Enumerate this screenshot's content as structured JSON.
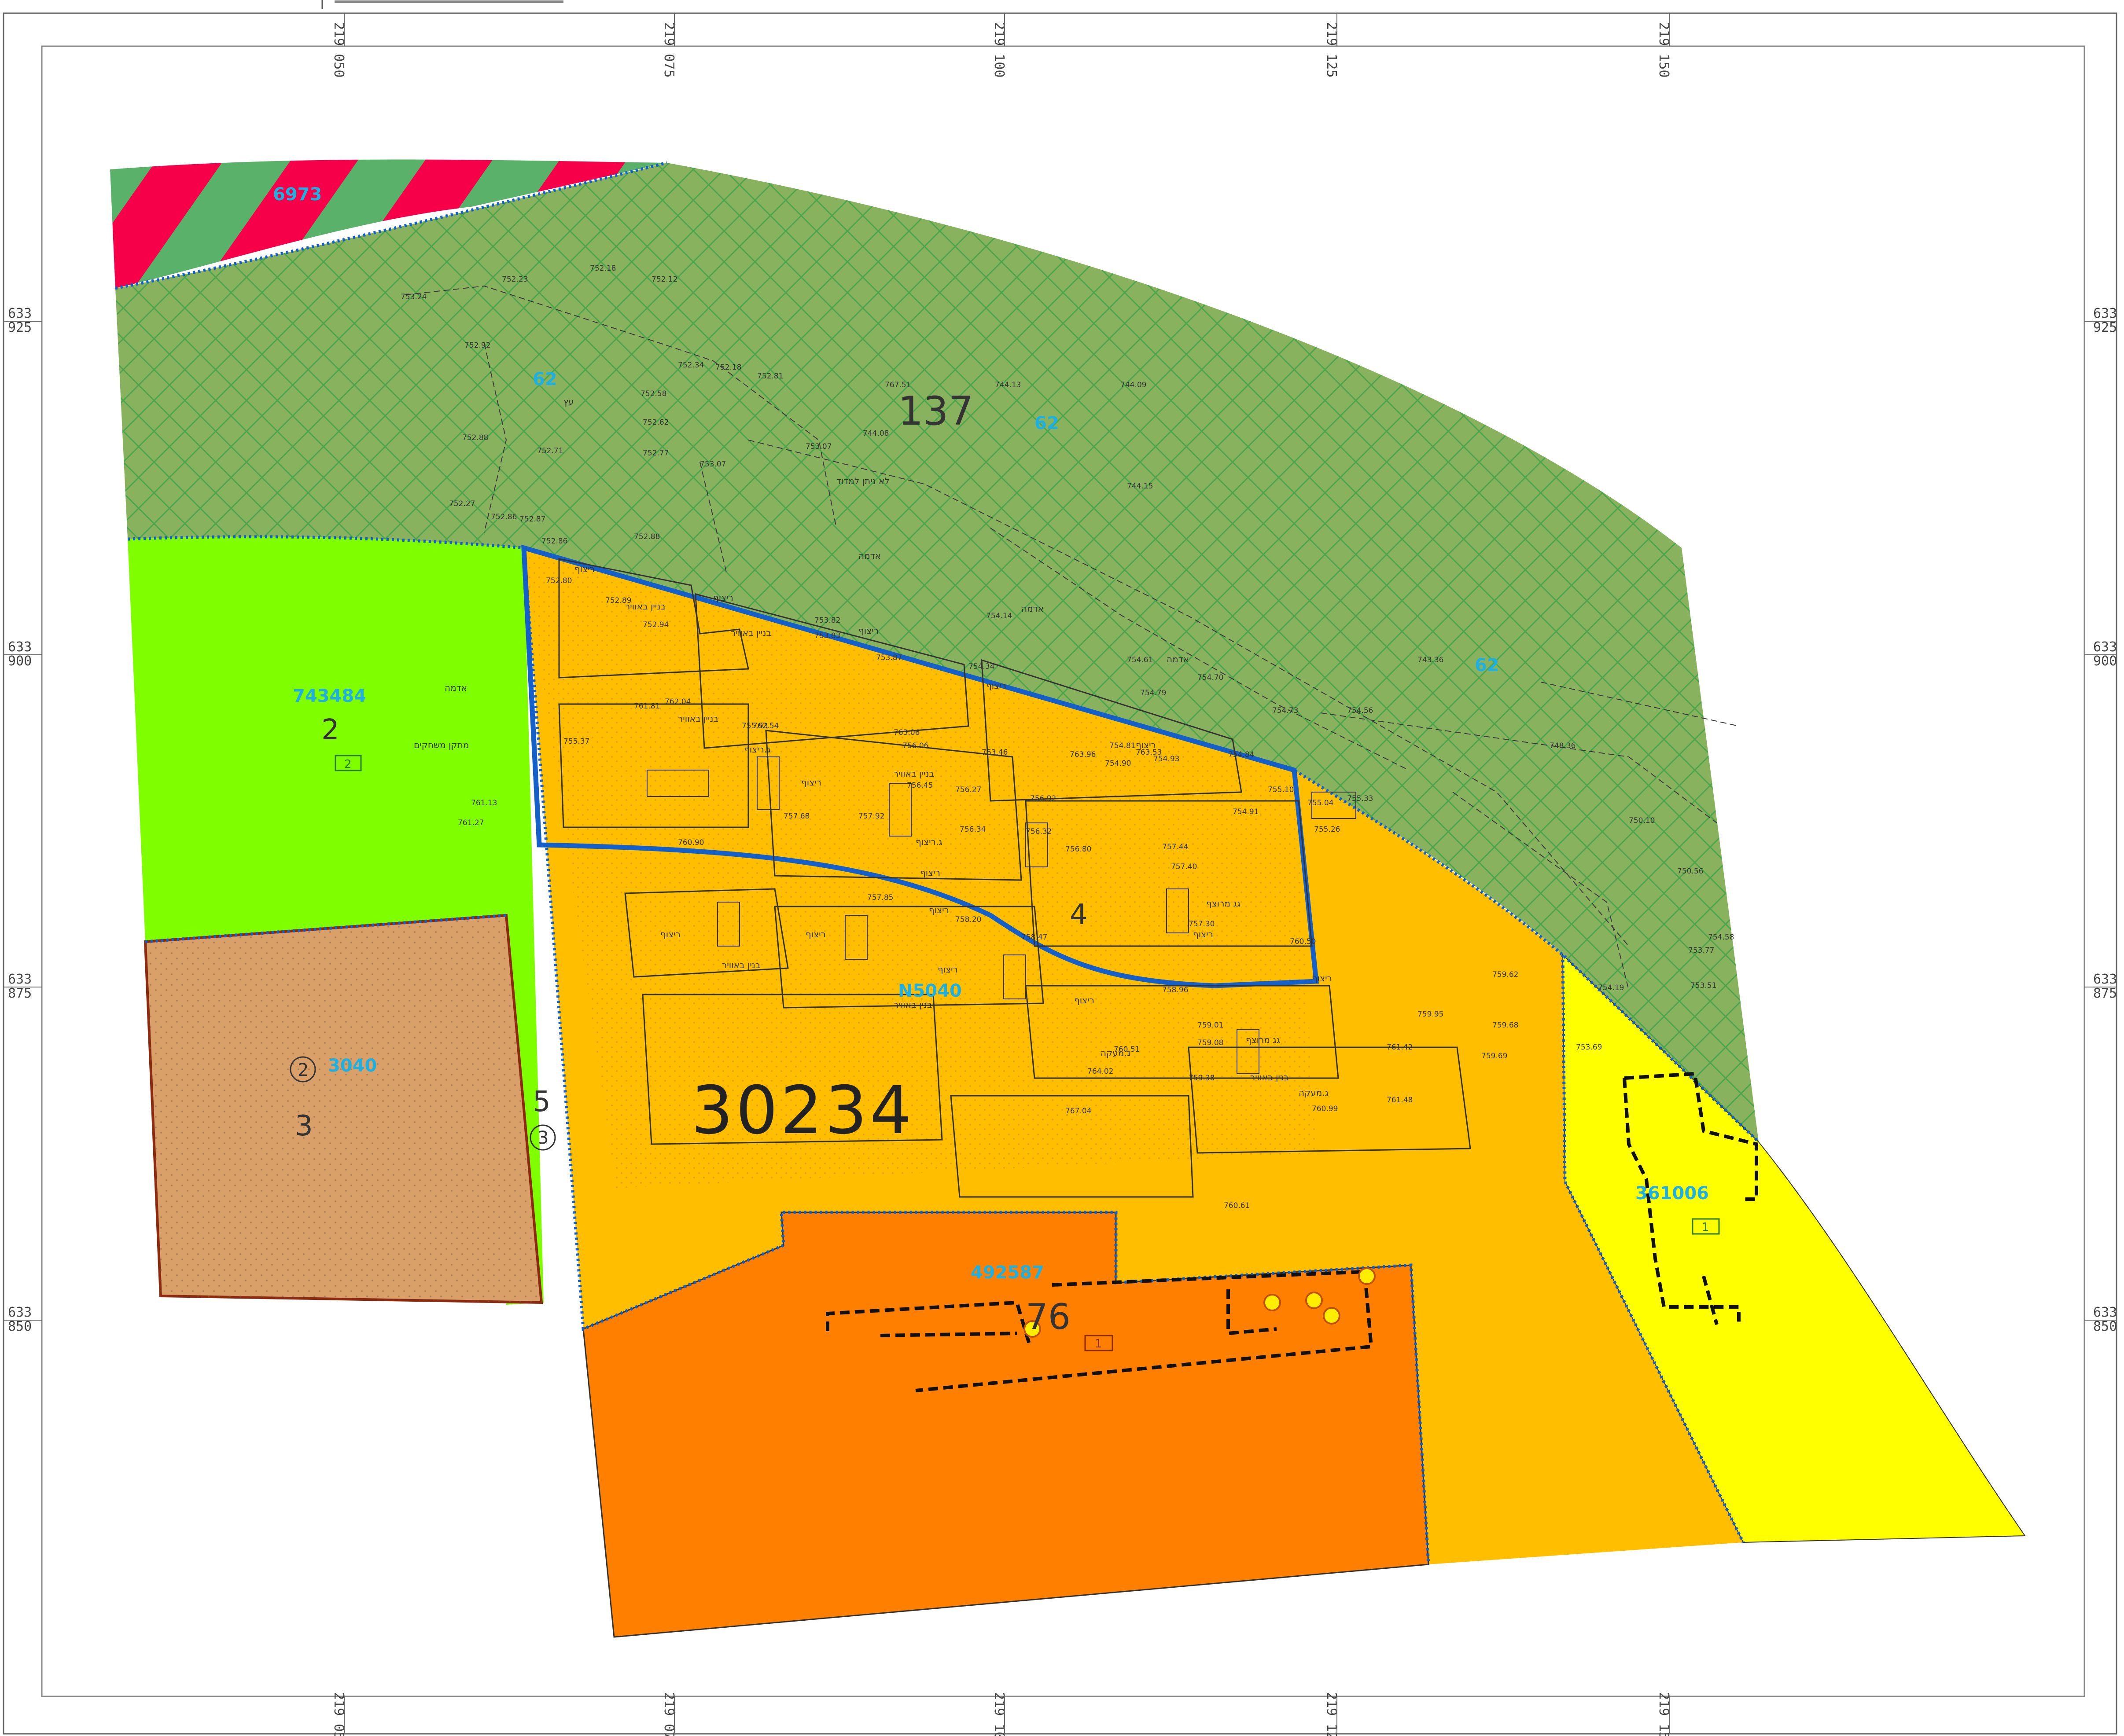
{
  "map": {
    "grid_x_labels": [
      {
        "top": "219",
        "bottom": "050"
      },
      {
        "top": "219",
        "bottom": "075"
      },
      {
        "top": "219",
        "bottom": "100"
      },
      {
        "top": "219",
        "bottom": "125"
      },
      {
        "top": "219",
        "bottom": "150"
      }
    ],
    "grid_y_labels": [
      {
        "top": "633",
        "bottom": "925"
      },
      {
        "top": "633",
        "bottom": "900"
      },
      {
        "top": "633",
        "bottom": "875"
      },
      {
        "top": "633",
        "bottom": "850"
      }
    ],
    "plan_ids": {
      "road_strip": "6973",
      "green_west": "743484",
      "brown_west": "3040",
      "orange_center": "N5040",
      "orange_south": "492587",
      "yellow_east": "361006",
      "green_north_a": "62",
      "green_north_b": "62",
      "green_north_c": "62"
    },
    "lot_numbers": {
      "lot_2": "2",
      "lot_2_box": "2",
      "lot_3": "3",
      "lot_3_circle": "2",
      "lot_5": "5",
      "lot_5_circle": "3",
      "lot_4": "4",
      "lot_137": "137",
      "lot_76": "76",
      "lot_76_box": "1",
      "yellow_box": "1",
      "block": "30234"
    },
    "hebrew_labels": [
      "ריצוף",
      "בניין באוויר",
      "אדמה",
      "לא ניתן למדוד",
      "גג מרוצף",
      "מתקן משחקים",
      "ג.ריצוף",
      "בנין באוויר",
      "ג.מעקה",
      "עץ"
    ],
    "survey_levels": [
      "753.24",
      "752.23",
      "752.18",
      "752.12",
      "752.92",
      "752.34",
      "752.18",
      "752.81",
      "752.58",
      "752.62",
      "753.07",
      "752.88",
      "752.71",
      "752.77",
      "753.07",
      "752.27",
      "752.86",
      "752.87",
      "752.86",
      "752.88",
      "752.80",
      "752.89",
      "752.94",
      "753.82",
      "753.83",
      "753.87",
      "754.14",
      "754.34",
      "754.61",
      "754.70",
      "754.79",
      "754.81",
      "754.90",
      "754.93",
      "754.84",
      "754.73",
      "754.56",
      "754.91",
      "755.10",
      "755.04",
      "755.26",
      "755.33",
      "755.37",
      "755.93",
      "756.06",
      "756.45",
      "756.27",
      "756.92",
      "756.32",
      "756.34",
      "756.80",
      "757.44",
      "757.40",
      "757.30",
      "757.68",
      "757.92",
      "757.85",
      "758.20",
      "758.47",
      "758.96",
      "759.01",
      "759.08",
      "759.38",
      "759.62",
      "759.68",
      "759.69",
      "759.95",
      "760.51",
      "760.50",
      "760.61",
      "760.90",
      "760.99",
      "761.13",
      "761.27",
      "761.42",
      "761.48",
      "761.81",
      "762.04",
      "762.54",
      "763.06",
      "763.46",
      "763.53",
      "763.96",
      "764.02",
      "767.04",
      "767.51",
      "744.13",
      "744.09",
      "744.08",
      "744.15",
      "743.36",
      "748.36",
      "750.10",
      "750.56",
      "753.77",
      "753.51",
      "753.69",
      "754.19",
      "754.58"
    ],
    "colors": {
      "green_hatched": "#88b25e",
      "hatch_lines": "#1a9b3a",
      "road_red": "#f7004a",
      "road_green": "#5ab26a",
      "light_green": "#7ffe00",
      "brown": "#d9a06a",
      "orange": "#ffbe00",
      "dark_orange": "#ff7f00",
      "yellow": "#ffff00",
      "plan_boundary": "#1560c8",
      "plan_id_text": "#1fb0e0"
    }
  }
}
